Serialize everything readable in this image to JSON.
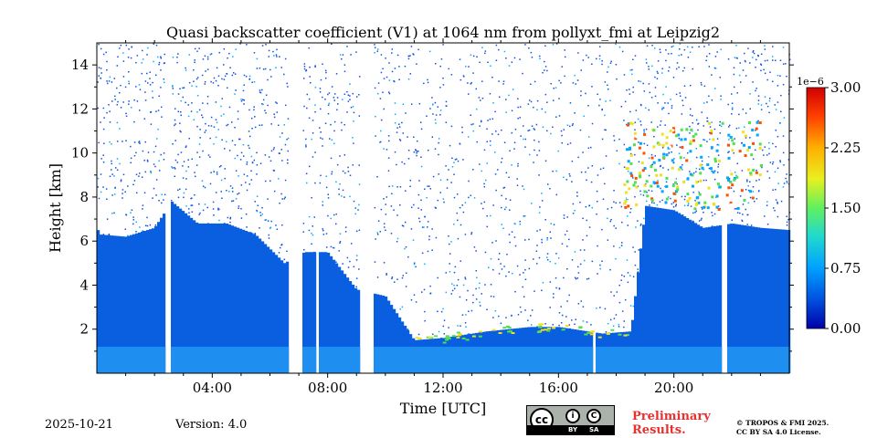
{
  "chart_data": {
    "type": "heatmap",
    "title": "Quasi backscatter coefficient (V1) at 1064 nm from pollyxt_fmi at Leipzig2",
    "xlabel": "Time [UTC]",
    "ylabel": "Height [km]",
    "xlim_hours": [
      0,
      24
    ],
    "ylim_km": [
      0,
      15
    ],
    "x_ticks": [
      {
        "hour": 4,
        "label": "04:00"
      },
      {
        "hour": 8,
        "label": "08:00"
      },
      {
        "hour": 12,
        "label": "12:00"
      },
      {
        "hour": 16,
        "label": "16:00"
      },
      {
        "hour": 20,
        "label": "20:00"
      }
    ],
    "y_ticks": [
      {
        "km": 2,
        "label": "2"
      },
      {
        "km": 4,
        "label": "4"
      },
      {
        "km": 6,
        "label": "6"
      },
      {
        "km": 8,
        "label": "8"
      },
      {
        "km": 10,
        "label": "10"
      },
      {
        "km": 12,
        "label": "12"
      },
      {
        "km": 14,
        "label": "14"
      }
    ],
    "colorbar": {
      "scale_label": "1e−6",
      "range": [
        0,
        3.0
      ],
      "ticks": [
        {
          "value": 0,
          "label": "0.00"
        },
        {
          "value": 0.75,
          "label": "0.75"
        },
        {
          "value": 1.5,
          "label": "1.50"
        },
        {
          "value": 2.25,
          "label": "2.25"
        },
        {
          "value": 3.0,
          "label": "3.00"
        }
      ],
      "colors": [
        "#0000a8",
        "#0050e0",
        "#00a0ff",
        "#20d8d0",
        "#60f060",
        "#e8f020",
        "#ffb000",
        "#ff4000",
        "#d00000"
      ]
    },
    "data_gaps_hours": [
      [
        2.4,
        2.55
      ],
      [
        6.6,
        7.1
      ],
      [
        7.6,
        7.7
      ],
      [
        9.1,
        9.6
      ],
      [
        17.15,
        17.3
      ],
      [
        21.65,
        21.8
      ]
    ],
    "boundary_layer_top_km": [
      {
        "hour": 0.1,
        "km": 6.3
      },
      {
        "hour": 1.0,
        "km": 6.2
      },
      {
        "hour": 2.0,
        "km": 6.6
      },
      {
        "hour": 2.6,
        "km": 7.8
      },
      {
        "hour": 3.5,
        "km": 6.8
      },
      {
        "hour": 4.5,
        "km": 6.8
      },
      {
        "hour": 5.5,
        "km": 6.3
      },
      {
        "hour": 6.5,
        "km": 5.0
      },
      {
        "hour": 7.2,
        "km": 5.5
      },
      {
        "hour": 8.0,
        "km": 5.5
      },
      {
        "hour": 9.0,
        "km": 3.8
      },
      {
        "hour": 10.0,
        "km": 3.5
      },
      {
        "hour": 11.0,
        "km": 1.5
      },
      {
        "hour": 12.0,
        "km": 1.6
      },
      {
        "hour": 13.5,
        "km": 1.9
      },
      {
        "hour": 15.0,
        "km": 2.1
      },
      {
        "hour": 16.0,
        "km": 2.1
      },
      {
        "hour": 17.5,
        "km": 1.8
      },
      {
        "hour": 18.5,
        "km": 1.9
      },
      {
        "hour": 19.0,
        "km": 7.6
      },
      {
        "hour": 20.0,
        "km": 7.4
      },
      {
        "hour": 21.0,
        "km": 6.6
      },
      {
        "hour": 22.0,
        "km": 6.8
      },
      {
        "hour": 23.0,
        "km": 6.6
      },
      {
        "hour": 24.0,
        "km": 6.5
      }
    ],
    "cirrus_layer": {
      "hours": [
        18.2,
        23.0
      ],
      "km": [
        7.5,
        11.5
      ],
      "peak_value": 3.0
    }
  },
  "footer": {
    "date": "2025-10-21",
    "version": "Version: 4.0",
    "license_badge": {
      "by": "BY",
      "sa": "SA"
    },
    "preliminary_line1": "Preliminary",
    "preliminary_line2": "Results.",
    "copyright_line1": "© TROPOS & FMI 2025.",
    "copyright_line2": "CC BY SA 4.0 License."
  }
}
